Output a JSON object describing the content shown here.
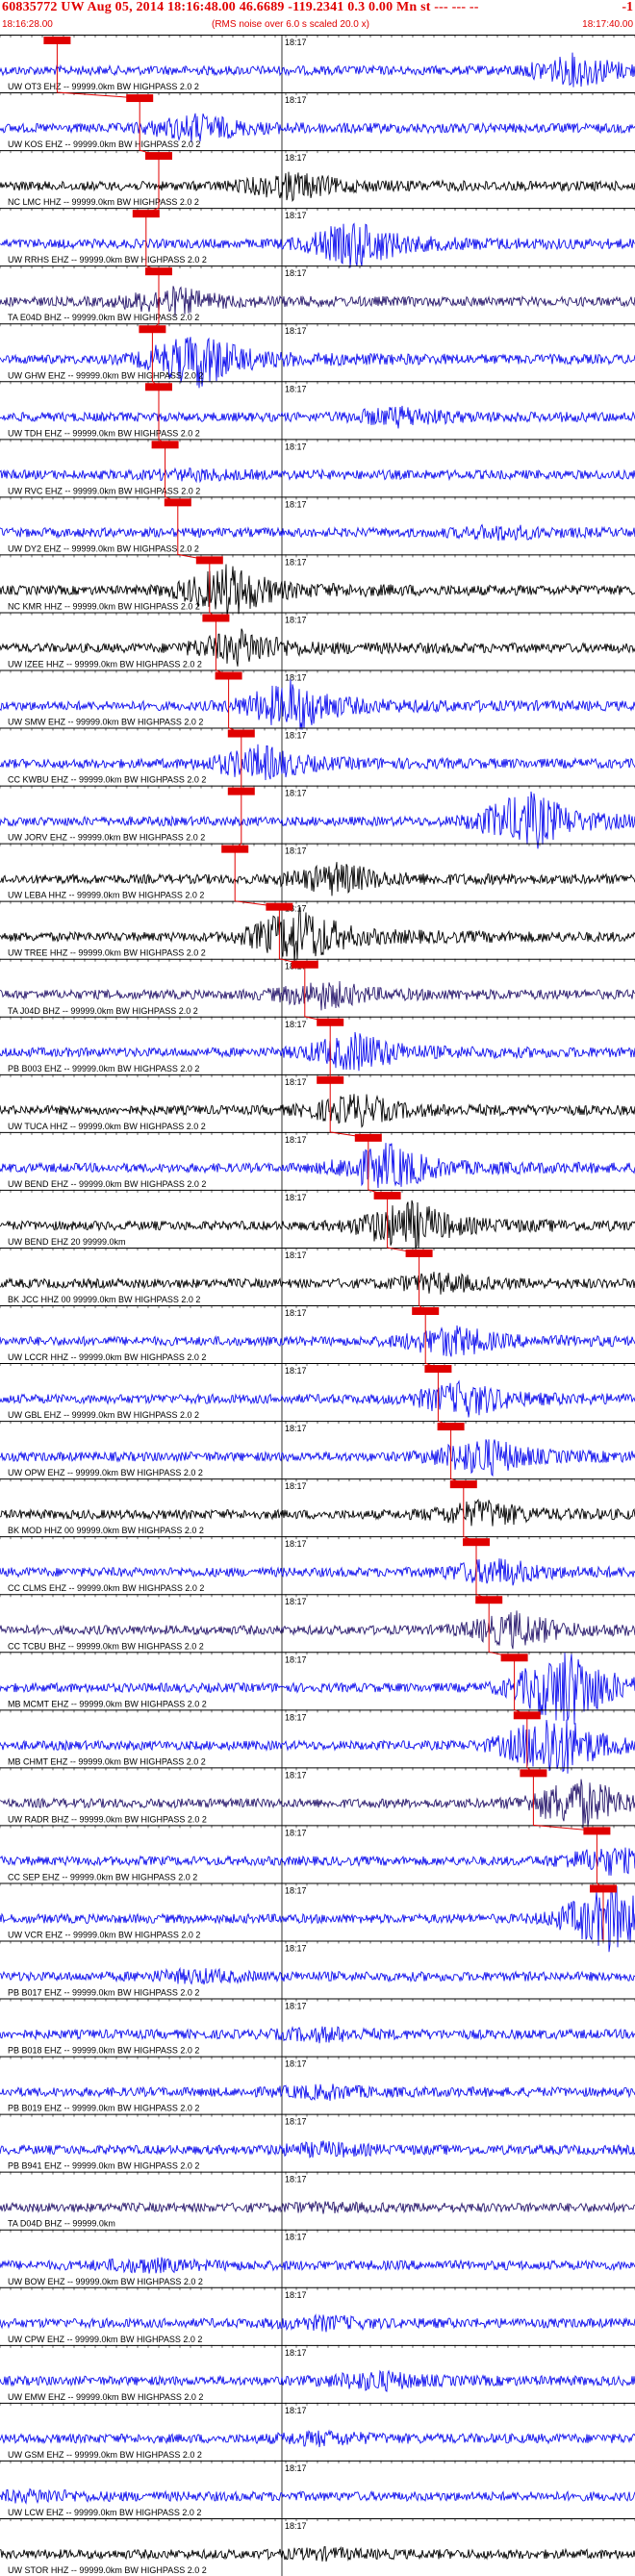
{
  "header": {
    "title": "60835772 UW Aug 05, 2014 18:16:48.00   46.6689 -119.2341  0.3 0.00 Mn st --- --- --",
    "title_end": "-1",
    "time_start": "18:16:28.00",
    "subtitle": "(RMS noise over 6.0 s scaled 20.0 x)",
    "time_end": "18:17:40.00"
  },
  "colors": {
    "header_text": "#e00000",
    "pick": "#e00000",
    "blue_trace": "#1010ee",
    "black_trace": "#000000",
    "purple_trace": "#2a1a6e"
  },
  "chart_data": {
    "type": "line",
    "title": "60835772 UW Aug 05, 2014 18:16:48.00   46.6689 -119.2341  0.3 0.00 Mn st --- --- --",
    "x_range": [
      "18:16:28.00",
      "18:17:40.00"
    ],
    "minute_tick_label": "18:17",
    "traces": [
      {
        "label": "UW OT3 EHZ -- 99999.0km BW  HIGHPASS  2.0  2",
        "color": "blue",
        "pick": 0.09,
        "burst": 0.9,
        "amp": 0.35
      },
      {
        "label": "UW KOS EHZ -- 99999.0km BW  HIGHPASS  2.0  2",
        "color": "blue",
        "pick": 0.22,
        "burst": 0.3,
        "amp": 0.3
      },
      {
        "label": "NC LMC HHZ -- 99999.0km BW  HIGHPASS  2.0  2",
        "color": "black",
        "pick": 0.25,
        "burst": 0.45,
        "amp": 0.3
      },
      {
        "label": "UW RRHS EHZ -- 99999.0km BW  HIGHPASS  2.0  2",
        "color": "blue",
        "pick": 0.23,
        "burst": 0.55,
        "amp": 0.55
      },
      {
        "label": "TA E04D BHZ -- 99999.0km BW  HIGHPASS  2.0  2",
        "color": "purple",
        "pick": 0.25,
        "burst": 0.26,
        "amp": 0.3
      },
      {
        "label": "UW GHW EHZ -- 99999.0km BW  HIGHPASS  2.0  2",
        "color": "blue",
        "pick": 0.24,
        "burst": 0.3,
        "amp": 0.7
      },
      {
        "label": "UW TDH EHZ -- 99999.0km BW  HIGHPASS  2.0  2",
        "color": "blue",
        "pick": 0.25,
        "burst": 0.62,
        "amp": 0.2
      },
      {
        "label": "UW RVC EHZ -- 99999.0km BW  HIGHPASS  2.0  2",
        "color": "blue",
        "pick": 0.26,
        "burst": 0.3,
        "amp": 0.08
      },
      {
        "label": "UW DY2 EHZ -- 99999.0km BW  HIGHPASS  2.0  2",
        "color": "blue",
        "pick": 0.28,
        "burst": 0.78,
        "amp": 0.12
      },
      {
        "label": "NC KMR HHZ -- 99999.0km BW  HIGHPASS  2.0  2",
        "color": "black",
        "pick": 0.33,
        "burst": 0.35,
        "amp": 0.6
      },
      {
        "label": "UW IZEE HHZ -- 99999.0km BW  HIGHPASS  2.0  2",
        "color": "black",
        "pick": 0.34,
        "burst": 0.37,
        "amp": 0.4
      },
      {
        "label": "UW SMW EHZ -- 99999.0km BW  HIGHPASS  2.0  2",
        "color": "blue",
        "pick": 0.36,
        "burst": 0.45,
        "amp": 0.6
      },
      {
        "label": "CC KWBU EHZ -- 99999.0km BW  HIGHPASS  2.0  2",
        "color": "blue",
        "pick": 0.38,
        "burst": 0.4,
        "amp": 0.4
      },
      {
        "label": "UW JORV EHZ -- 99999.0km BW  HIGHPASS  2.0  2",
        "color": "blue",
        "pick": 0.38,
        "burst": 0.82,
        "amp": 0.7
      },
      {
        "label": "UW LEBA HHZ -- 99999.0km BW  HIGHPASS  2.0  2",
        "color": "black",
        "pick": 0.37,
        "burst": 0.52,
        "amp": 0.35
      },
      {
        "label": "UW TREE HHZ -- 99999.0km BW  HIGHPASS  2.0  2",
        "color": "black",
        "pick": 0.44,
        "burst": 0.46,
        "amp": 0.7
      },
      {
        "label": "TA J04D BHZ -- 99999.0km BW  HIGHPASS  2.0  2",
        "color": "purple",
        "pick": 0.48,
        "burst": 0.5,
        "amp": 0.3
      },
      {
        "label": "PB B003 EHZ -- 99999.0km BW  HIGHPASS  2.0  2",
        "color": "blue",
        "pick": 0.52,
        "burst": 0.55,
        "amp": 0.45
      },
      {
        "label": "UW TUCA HHZ -- 99999.0km BW  HIGHPASS  2.0  2",
        "color": "black",
        "pick": 0.52,
        "burst": 0.55,
        "amp": 0.35
      },
      {
        "label": "UW BEND EHZ -- 99999.0km BW  HIGHPASS  2.0  2",
        "color": "blue",
        "pick": 0.58,
        "burst": 0.6,
        "amp": 0.55
      },
      {
        "label": "UW BEND EHZ 20 99999.0km",
        "color": "black",
        "pick": 0.61,
        "burst": 0.63,
        "amp": 0.6
      },
      {
        "label": "BK JCC HHZ 00 99999.0km BW  HIGHPASS  2.0  2",
        "color": "black",
        "pick": 0.66,
        "burst": 0.68,
        "amp": 0.2
      },
      {
        "label": "UW LCCR HHZ -- 99999.0km BW  HIGHPASS  2.0  2",
        "color": "blue",
        "pick": 0.67,
        "burst": 0.7,
        "amp": 0.35
      },
      {
        "label": "UW GBL EHZ -- 99999.0km BW  HIGHPASS  2.0  2",
        "color": "blue",
        "pick": 0.69,
        "burst": 0.72,
        "amp": 0.4
      },
      {
        "label": "UW OPW EHZ -- 99999.0km BW  HIGHPASS  2.0  2",
        "color": "blue",
        "pick": 0.71,
        "burst": 0.75,
        "amp": 0.45
      },
      {
        "label": "BK MOD HHZ 00 99999.0km BW  HIGHPASS  2.0  2",
        "color": "black",
        "pick": 0.73,
        "burst": 0.75,
        "amp": 0.3
      },
      {
        "label": "CC CLMS EHZ -- 99999.0km BW  HIGHPASS  2.0  2",
        "color": "blue",
        "pick": 0.75,
        "burst": 0.77,
        "amp": 0.3
      },
      {
        "label": "CC TCBU BHZ -- 99999.0km BW  HIGHPASS  2.0  2",
        "color": "purple",
        "pick": 0.77,
        "burst": 0.8,
        "amp": 0.4
      },
      {
        "label": "MB MCMT EHZ -- 99999.0km BW  HIGHPASS  2.0  2",
        "color": "blue",
        "pick": 0.81,
        "burst": 0.88,
        "amp": 1.0
      },
      {
        "label": "MB CHMT EHZ -- 99999.0km BW  HIGHPASS  2.0  2",
        "color": "blue",
        "pick": 0.83,
        "burst": 0.86,
        "amp": 0.8
      },
      {
        "label": "UW RADR BHZ -- 99999.0km BW  HIGHPASS  2.0  2",
        "color": "purple",
        "pick": 0.84,
        "burst": 0.9,
        "amp": 0.6
      },
      {
        "label": "CC SEP EHZ -- 99999.0km BW  HIGHPASS  2.0  2",
        "color": "blue",
        "pick": 0.94,
        "burst": 0.95,
        "amp": 0.3
      },
      {
        "label": "UW VCR EHZ -- 99999.0km BW  HIGHPASS  2.0  2",
        "color": "blue",
        "pick": 0.95,
        "burst": 0.95,
        "amp": 0.8
      },
      {
        "label": "PB B017 EHZ -- 99999.0km BW  HIGHPASS  2.0  2",
        "color": "blue",
        "pick": null,
        "burst": 0.3,
        "amp": 0.12
      },
      {
        "label": "PB B018 EHZ -- 99999.0km BW  HIGHPASS  2.0  2",
        "color": "blue",
        "pick": null,
        "burst": 0.5,
        "amp": 0.12
      },
      {
        "label": "PB B019 EHZ -- 99999.0km BW  HIGHPASS  2.0  2",
        "color": "blue",
        "pick": null,
        "burst": 0.5,
        "amp": 0.12
      },
      {
        "label": "PB B941 EHZ -- 99999.0km BW  HIGHPASS  2.0  2",
        "color": "blue",
        "pick": null,
        "burst": 0.5,
        "amp": 0.12
      },
      {
        "label": "TA D04D BHZ -- 99999.0km",
        "color": "purple",
        "pick": null,
        "burst": 0.5,
        "amp": 0.05
      },
      {
        "label": "UW BOW EHZ -- 99999.0km BW  HIGHPASS  2.0  2",
        "color": "blue",
        "pick": null,
        "burst": 0.22,
        "amp": 0.12
      },
      {
        "label": "UW CPW EHZ -- 99999.0km BW  HIGHPASS  2.0  2",
        "color": "blue",
        "pick": null,
        "burst": 0.5,
        "amp": 0.12
      },
      {
        "label": "UW EMW EHZ -- 99999.0km BW  HIGHPASS  2.0  2",
        "color": "blue",
        "pick": null,
        "burst": 0.58,
        "amp": 0.2
      },
      {
        "label": "UW GSM EHZ -- 99999.0km BW  HIGHPASS  2.0  2",
        "color": "blue",
        "pick": null,
        "burst": 0.5,
        "amp": 0.12
      },
      {
        "label": "UW LCW EHZ -- 99999.0km BW  HIGHPASS  2.0  2",
        "color": "blue",
        "pick": null,
        "burst": 0.05,
        "amp": 0.1
      },
      {
        "label": "UW STOR HHZ -- 99999.0km BW  HIGHPASS  2.0  2",
        "color": "black",
        "pick": null,
        "burst": 0.5,
        "amp": 0.08
      }
    ]
  }
}
